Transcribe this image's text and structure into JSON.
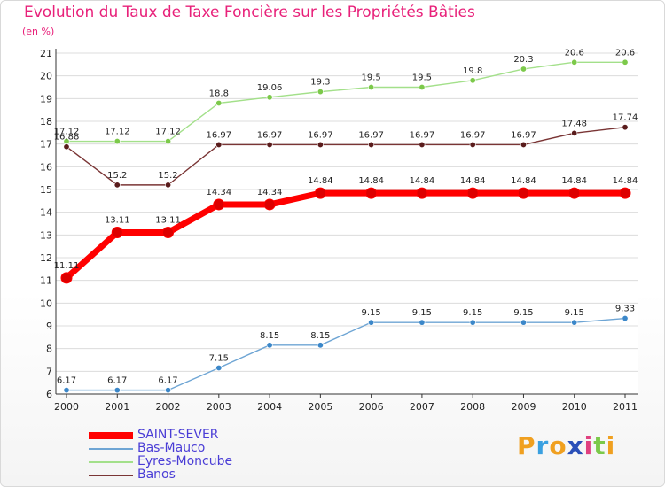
{
  "chart_data": {
    "type": "line",
    "title": "Evolution du Taux de Taxe Foncière sur les Propriétés Bâties",
    "unit_label": "(en %)",
    "xlabel": "",
    "ylabel": "",
    "categories": [
      "2000",
      "2001",
      "2002",
      "2003",
      "2004",
      "2005",
      "2006",
      "2007",
      "2008",
      "2009",
      "2010",
      "2011"
    ],
    "ylim": [
      6,
      21
    ],
    "yticks": [
      6,
      7,
      8,
      9,
      10,
      11,
      12,
      13,
      14,
      15,
      16,
      17,
      18,
      19,
      20,
      21
    ],
    "grid": "horizontal",
    "legend_position": "bottom-left",
    "series": [
      {
        "name": "SAINT-SEVER",
        "color": "#ff0000",
        "dot": "#dd0000",
        "width": "thick",
        "values": [
          11.11,
          13.11,
          13.11,
          14.34,
          14.34,
          14.84,
          14.84,
          14.84,
          14.84,
          14.84,
          14.84,
          14.84
        ],
        "labels": [
          "11.11",
          "13.11",
          "13.11",
          "14.34",
          "14.34",
          "14.84",
          "14.84",
          "14.84",
          "14.84",
          "14.84",
          "14.84",
          "14.84"
        ]
      },
      {
        "name": "Bas-Mauco",
        "color": "#6ea5d4",
        "dot": "#3b87c9",
        "width": "thin",
        "values": [
          6.17,
          6.17,
          6.17,
          7.15,
          8.15,
          8.15,
          9.15,
          9.15,
          9.15,
          9.15,
          9.15,
          9.33
        ],
        "labels": [
          "6.17",
          "6.17",
          "6.17",
          "7.15",
          "8.15",
          "8.15",
          "9.15",
          "9.15",
          "9.15",
          "9.15",
          "9.15",
          "9.33"
        ]
      },
      {
        "name": "Eyres-Moncube",
        "color": "#a3e08a",
        "dot": "#7cc94a",
        "width": "thin",
        "values": [
          17.12,
          17.12,
          17.12,
          18.8,
          19.06,
          19.3,
          19.5,
          19.5,
          19.8,
          20.3,
          20.6,
          20.6
        ],
        "labels": [
          "17.12",
          "17.12",
          "17.12",
          "18.8",
          "19.06",
          "19.3",
          "19.5",
          "19.5",
          "19.8",
          "20.3",
          "20.6",
          "20.6"
        ]
      },
      {
        "name": "Banos",
        "color": "#7a3535",
        "dot": "#5a1c1c",
        "width": "thin",
        "values": [
          16.88,
          15.2,
          15.2,
          16.97,
          16.97,
          16.97,
          16.97,
          16.97,
          16.97,
          16.97,
          17.48,
          17.74
        ],
        "labels": [
          "16.88",
          "15.2",
          "15.2",
          "16.97",
          "16.97",
          "16.97",
          "16.97",
          "16.97",
          "16.97",
          "16.97",
          "17.48",
          "17.74"
        ]
      }
    ]
  },
  "legend": {
    "items": [
      "SAINT-SEVER",
      "Bas-Mauco",
      "Eyres-Moncube",
      "Banos"
    ]
  },
  "branding": {
    "logo_letters": [
      "P",
      "r",
      "o",
      "x",
      "i",
      "t",
      "i"
    ],
    "logo_colors": [
      "#f0a020",
      "#3aa0e0",
      "#f0a020",
      "#2a4fb8",
      "#e04080",
      "#7cc94a",
      "#f0a020"
    ]
  }
}
